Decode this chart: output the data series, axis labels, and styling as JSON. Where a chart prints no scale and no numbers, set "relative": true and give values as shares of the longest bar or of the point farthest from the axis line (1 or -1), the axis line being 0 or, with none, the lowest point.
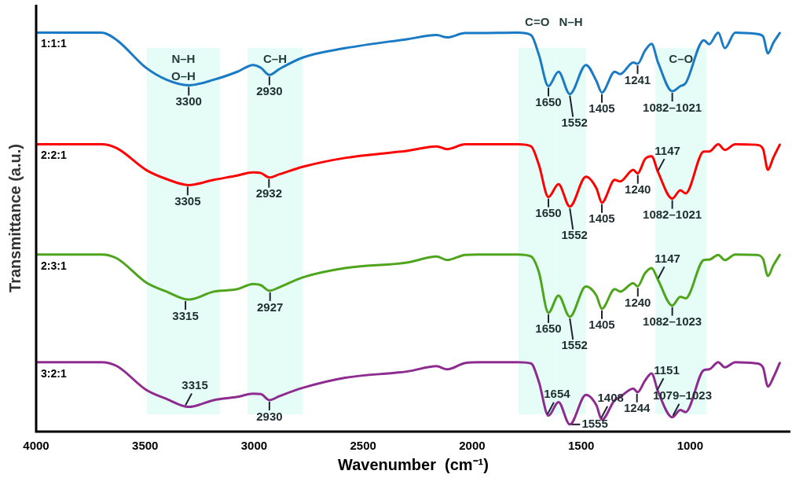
{
  "chart_data": {
    "type": "line",
    "relative": true,
    "xlabel": "Wavenumber  (cm⁻¹)",
    "ylabel": "Transmittance (a.u.)",
    "xlim": [
      4000,
      540
    ],
    "xticks": [
      4000,
      3500,
      3000,
      2500,
      2000,
      1500,
      1000
    ],
    "grid": false,
    "legend": false,
    "marker": "none",
    "line_style": "solid",
    "x": [
      4000,
      3700,
      3629,
      3496,
      3402,
      3300,
      3185,
      3077,
      3005,
      2969,
      2930,
      2884,
      2775,
      2583,
      2295,
      2163,
      2115,
      2032,
      1970,
      1790,
      1730,
      1694,
      1650,
      1604,
      1552,
      1478,
      1430,
      1405,
      1346,
      1321,
      1261,
      1241,
      1207,
      1177,
      1147,
      1082,
      1045,
      1021,
      937,
      913,
      871,
      841,
      793,
      697,
      666,
      643,
      619,
      589
    ],
    "series": [
      {
        "name": "1:1:1",
        "color": "#1a7ac4",
        "values": [
          1.0,
          1.0,
          0.981,
          0.912,
          0.882,
          0.868,
          0.882,
          0.902,
          0.919,
          0.912,
          0.894,
          0.909,
          0.938,
          0.961,
          0.984,
          0.994,
          0.988,
          0.999,
          0.999,
          1.0,
          0.994,
          0.945,
          0.866,
          0.902,
          0.846,
          0.919,
          0.879,
          0.85,
          0.902,
          0.896,
          0.925,
          0.922,
          0.955,
          0.972,
          0.925,
          0.853,
          0.866,
          0.873,
          0.981,
          0.971,
          1.0,
          0.961,
          1.0,
          0.997,
          0.991,
          0.948,
          0.974,
          0.999
        ]
      },
      {
        "name": "2:2:1",
        "color": "#ff0000",
        "values": [
          0.72,
          0.72,
          0.71,
          0.656,
          0.633,
          0.618,
          0.631,
          0.642,
          0.65,
          0.648,
          0.637,
          0.645,
          0.664,
          0.686,
          0.704,
          0.715,
          0.708,
          0.72,
          0.72,
          0.72,
          0.715,
          0.669,
          0.588,
          0.62,
          0.564,
          0.639,
          0.61,
          0.574,
          0.631,
          0.627,
          0.656,
          0.647,
          0.683,
          0.69,
          0.65,
          0.584,
          0.605,
          0.597,
          0.702,
          0.702,
          0.72,
          0.706,
          0.72,
          0.719,
          0.709,
          0.656,
          0.686,
          0.719
        ]
      },
      {
        "name": "2:3:1",
        "color": "#4ea51c",
        "values": [
          0.444,
          0.444,
          0.434,
          0.374,
          0.351,
          0.331,
          0.351,
          0.357,
          0.37,
          0.367,
          0.353,
          0.362,
          0.387,
          0.41,
          0.424,
          0.439,
          0.43,
          0.443,
          0.444,
          0.444,
          0.439,
          0.4,
          0.298,
          0.341,
          0.288,
          0.364,
          0.341,
          0.308,
          0.357,
          0.351,
          0.372,
          0.364,
          0.397,
          0.41,
          0.38,
          0.316,
          0.338,
          0.334,
          0.43,
          0.431,
          0.443,
          0.43,
          0.444,
          0.443,
          0.433,
          0.39,
          0.416,
          0.443
        ]
      },
      {
        "name": "3:2:1",
        "color": "#8e2b91",
        "values": [
          0.174,
          0.174,
          0.164,
          0.105,
          0.082,
          0.062,
          0.079,
          0.087,
          0.095,
          0.094,
          0.079,
          0.089,
          0.11,
          0.135,
          0.151,
          0.164,
          0.156,
          0.172,
          0.174,
          0.174,
          0.171,
          0.125,
          0.04,
          0.074,
          0.018,
          0.092,
          0.066,
          0.03,
          0.079,
          0.087,
          0.108,
          0.099,
          0.128,
          0.146,
          0.1,
          0.036,
          0.054,
          0.049,
          0.154,
          0.156,
          0.174,
          0.161,
          0.174,
          0.171,
          0.161,
          0.113,
          0.135,
          0.172
        ]
      }
    ],
    "bands": [
      {
        "axis": "x",
        "from": 3493,
        "to": 3156,
        "label": "N–H\nO–H",
        "color": "#e0fcf5"
      },
      {
        "axis": "x",
        "from": 3031,
        "to": 2778,
        "label": "C–H",
        "color": "#e0fcf5"
      },
      {
        "axis": "x",
        "from": 1787,
        "to": 1616,
        "label": "C=O",
        "color": "#e0fcf5"
      },
      {
        "axis": "x",
        "from": 1616,
        "to": 1478,
        "label": "N–H",
        "color": "#e0fcf5"
      },
      {
        "axis": "x",
        "from": 1159,
        "to": 925,
        "label": "C–O",
        "color": "#e0fcf5"
      }
    ],
    "annotations": [
      {
        "text": "3300",
        "x": 3300,
        "y": 0.868
      },
      {
        "text": "2930",
        "x": 2930,
        "y": 0.894
      },
      {
        "text": "1650",
        "x": 1650,
        "y": 0.866
      },
      {
        "text": "1552",
        "x": 1552,
        "y": 0.846
      },
      {
        "text": "1405",
        "x": 1405,
        "y": 0.85
      },
      {
        "text": "1082–1021",
        "x": 1082,
        "y": 0.853
      },
      {
        "text": "1241",
        "x": 1241,
        "y": 0.922
      },
      {
        "text": "3305",
        "x": 3305,
        "y": 0.618
      },
      {
        "text": "2932",
        "x": 2932,
        "y": 0.637
      },
      {
        "text": "1650",
        "x": 1650,
        "y": 0.588
      },
      {
        "text": "1552",
        "x": 1552,
        "y": 0.564
      },
      {
        "text": "1405",
        "x": 1405,
        "y": 0.574
      },
      {
        "text": "1082–1021",
        "x": 1082,
        "y": 0.584
      },
      {
        "text": "1240",
        "x": 1240,
        "y": 0.647
      },
      {
        "text": "1147",
        "x": 1147,
        "y": 0.65
      },
      {
        "text": "3315",
        "x": 3315,
        "y": 0.331
      },
      {
        "text": "2927",
        "x": 2927,
        "y": 0.353
      },
      {
        "text": "1650",
        "x": 1650,
        "y": 0.298
      },
      {
        "text": "1552",
        "x": 1552,
        "y": 0.288
      },
      {
        "text": "1405",
        "x": 1405,
        "y": 0.308
      },
      {
        "text": "1082–1023",
        "x": 1082,
        "y": 0.316
      },
      {
        "text": "1240",
        "x": 1240,
        "y": 0.364
      },
      {
        "text": "1147",
        "x": 1147,
        "y": 0.38
      },
      {
        "text": "3315",
        "x": 3315,
        "y": 0.062
      },
      {
        "text": "2930",
        "x": 2930,
        "y": 0.079
      },
      {
        "text": "1654",
        "x": 1654,
        "y": 0.04
      },
      {
        "text": "1555",
        "x": 1555,
        "y": 0.018
      },
      {
        "text": "1408",
        "x": 1408,
        "y": 0.03
      },
      {
        "text": "1079–1023",
        "x": 1079,
        "y": 0.036
      },
      {
        "text": "1244",
        "x": 1244,
        "y": 0.099
      },
      {
        "text": "1151",
        "x": 1151,
        "y": 0.1
      }
    ]
  }
}
